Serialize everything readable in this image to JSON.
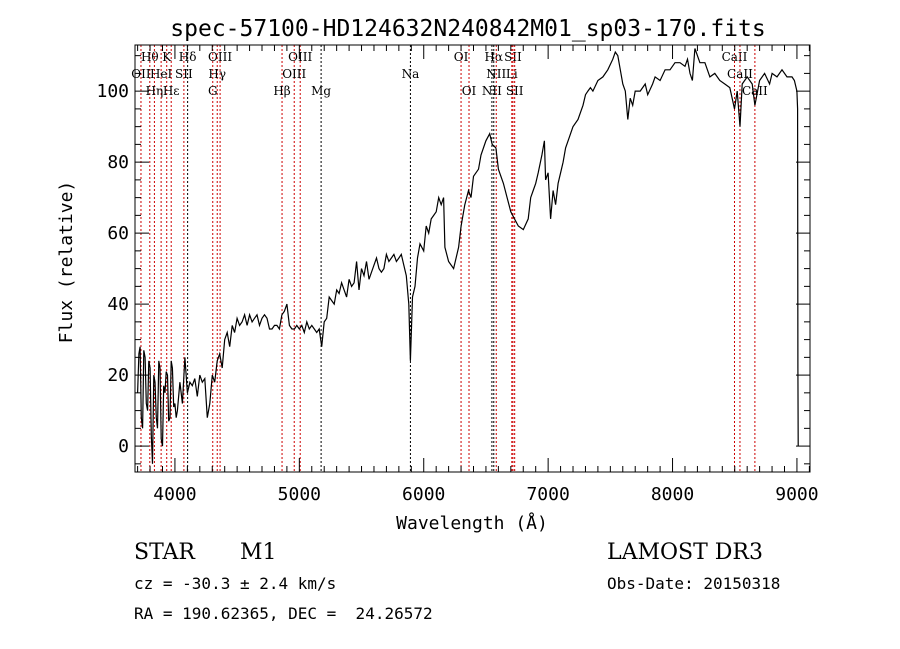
{
  "chart_data": {
    "type": "line",
    "title": "spec-57100-HD124632N240842M01_sp03-170.fits",
    "xlabel": "Wavelength (Å)",
    "ylabel": "Flux (relative)",
    "xlim": [
      3679,
      9105
    ],
    "ylim": [
      -7.3,
      113
    ],
    "xticks": [
      4000,
      5000,
      6000,
      7000,
      8000,
      9000
    ],
    "yticks": [
      0,
      20,
      40,
      60,
      80,
      100
    ],
    "grid": false,
    "colors": {
      "spectrum": "#000000",
      "line_red": "#cc0000",
      "line_black": "#000000"
    },
    "series": [
      {
        "name": "spectrum",
        "points": [
          [
            3700,
            15
          ],
          [
            3710,
            26
          ],
          [
            3720,
            28
          ],
          [
            3730,
            8
          ],
          [
            3740,
            5
          ],
          [
            3750,
            27
          ],
          [
            3760,
            25
          ],
          [
            3770,
            12
          ],
          [
            3780,
            10
          ],
          [
            3790,
            24
          ],
          [
            3800,
            22
          ],
          [
            3810,
            3
          ],
          [
            3820,
            -5
          ],
          [
            3830,
            20
          ],
          [
            3840,
            18
          ],
          [
            3850,
            8
          ],
          [
            3860,
            5
          ],
          [
            3870,
            24
          ],
          [
            3880,
            22
          ],
          [
            3890,
            2
          ],
          [
            3900,
            0
          ],
          [
            3910,
            17
          ],
          [
            3920,
            15
          ],
          [
            3930,
            21
          ],
          [
            3940,
            20
          ],
          [
            3950,
            7
          ],
          [
            3960,
            8
          ],
          [
            3970,
            24
          ],
          [
            3980,
            22
          ],
          [
            3990,
            11
          ],
          [
            4000,
            12
          ],
          [
            4010,
            8
          ],
          [
            4020,
            10
          ],
          [
            4040,
            18
          ],
          [
            4060,
            12
          ],
          [
            4080,
            25
          ],
          [
            4100,
            15
          ],
          [
            4120,
            18
          ],
          [
            4140,
            17
          ],
          [
            4160,
            19
          ],
          [
            4180,
            14
          ],
          [
            4200,
            20
          ],
          [
            4220,
            18
          ],
          [
            4240,
            19
          ],
          [
            4260,
            8
          ],
          [
            4280,
            12
          ],
          [
            4300,
            20
          ],
          [
            4320,
            18
          ],
          [
            4340,
            24
          ],
          [
            4360,
            26
          ],
          [
            4380,
            22
          ],
          [
            4400,
            30
          ],
          [
            4420,
            32
          ],
          [
            4440,
            28
          ],
          [
            4460,
            34
          ],
          [
            4480,
            32
          ],
          [
            4500,
            36
          ],
          [
            4520,
            34
          ],
          [
            4540,
            35
          ],
          [
            4560,
            37
          ],
          [
            4580,
            34
          ],
          [
            4600,
            37
          ],
          [
            4620,
            35
          ],
          [
            4640,
            36
          ],
          [
            4660,
            37
          ],
          [
            4680,
            34
          ],
          [
            4700,
            36
          ],
          [
            4720,
            37
          ],
          [
            4740,
            36
          ],
          [
            4760,
            33
          ],
          [
            4780,
            33
          ],
          [
            4800,
            34
          ],
          [
            4820,
            34
          ],
          [
            4840,
            33
          ],
          [
            4860,
            37
          ],
          [
            4880,
            38
          ],
          [
            4900,
            40
          ],
          [
            4920,
            34
          ],
          [
            4940,
            33
          ],
          [
            4960,
            33
          ],
          [
            4980,
            34
          ],
          [
            5000,
            33
          ],
          [
            5020,
            34
          ],
          [
            5040,
            32
          ],
          [
            5060,
            35
          ],
          [
            5080,
            33
          ],
          [
            5100,
            34
          ],
          [
            5120,
            33
          ],
          [
            5140,
            32
          ],
          [
            5160,
            33
          ],
          [
            5180,
            28
          ],
          [
            5200,
            35
          ],
          [
            5220,
            36
          ],
          [
            5240,
            42
          ],
          [
            5260,
            41
          ],
          [
            5280,
            40
          ],
          [
            5300,
            44
          ],
          [
            5320,
            43
          ],
          [
            5340,
            46
          ],
          [
            5360,
            44
          ],
          [
            5380,
            42
          ],
          [
            5400,
            47
          ],
          [
            5420,
            45
          ],
          [
            5440,
            46
          ],
          [
            5460,
            52
          ],
          [
            5480,
            44
          ],
          [
            5500,
            50
          ],
          [
            5520,
            48
          ],
          [
            5540,
            52
          ],
          [
            5560,
            47
          ],
          [
            5580,
            49
          ],
          [
            5600,
            51
          ],
          [
            5620,
            53
          ],
          [
            5640,
            50
          ],
          [
            5660,
            49
          ],
          [
            5680,
            50
          ],
          [
            5700,
            54
          ],
          [
            5720,
            52
          ],
          [
            5740,
            53
          ],
          [
            5760,
            54
          ],
          [
            5780,
            52
          ],
          [
            5800,
            53
          ],
          [
            5820,
            54
          ],
          [
            5840,
            51
          ],
          [
            5860,
            48
          ],
          [
            5880,
            40
          ],
          [
            5893,
            24
          ],
          [
            5910,
            42
          ],
          [
            5930,
            45
          ],
          [
            5950,
            53
          ],
          [
            5970,
            57
          ],
          [
            6000,
            55
          ],
          [
            6020,
            62
          ],
          [
            6040,
            60
          ],
          [
            6060,
            64
          ],
          [
            6080,
            65
          ],
          [
            6100,
            66
          ],
          [
            6120,
            70
          ],
          [
            6140,
            68
          ],
          [
            6160,
            70
          ],
          [
            6170,
            56
          ],
          [
            6200,
            52
          ],
          [
            6240,
            50
          ],
          [
            6280,
            56
          ],
          [
            6300,
            62
          ],
          [
            6330,
            68
          ],
          [
            6360,
            72
          ],
          [
            6380,
            70
          ],
          [
            6400,
            76
          ],
          [
            6440,
            78
          ],
          [
            6460,
            82
          ],
          [
            6500,
            86
          ],
          [
            6530,
            88
          ],
          [
            6550,
            85
          ],
          [
            6580,
            84
          ],
          [
            6600,
            78
          ],
          [
            6640,
            74
          ],
          [
            6670,
            70
          ],
          [
            6700,
            66
          ],
          [
            6730,
            64
          ],
          [
            6760,
            62
          ],
          [
            6800,
            61
          ],
          [
            6840,
            64
          ],
          [
            6860,
            70
          ],
          [
            6880,
            72
          ],
          [
            6900,
            74
          ],
          [
            6920,
            77
          ],
          [
            6950,
            82
          ],
          [
            6970,
            86
          ],
          [
            6980,
            75
          ],
          [
            7000,
            77
          ],
          [
            7020,
            64
          ],
          [
            7040,
            72
          ],
          [
            7060,
            68
          ],
          [
            7080,
            74
          ],
          [
            7100,
            77
          ],
          [
            7120,
            80
          ],
          [
            7140,
            84
          ],
          [
            7170,
            87
          ],
          [
            7200,
            90
          ],
          [
            7240,
            92
          ],
          [
            7280,
            96
          ],
          [
            7300,
            99
          ],
          [
            7320,
            100
          ],
          [
            7340,
            101
          ],
          [
            7360,
            100
          ],
          [
            7400,
            103
          ],
          [
            7440,
            104
          ],
          [
            7480,
            106
          ],
          [
            7520,
            109
          ],
          [
            7540,
            111
          ],
          [
            7560,
            110
          ],
          [
            7580,
            106
          ],
          [
            7600,
            102
          ],
          [
            7620,
            100
          ],
          [
            7640,
            92
          ],
          [
            7660,
            98
          ],
          [
            7680,
            96
          ],
          [
            7700,
            100
          ],
          [
            7740,
            100
          ],
          [
            7780,
            102
          ],
          [
            7800,
            99
          ],
          [
            7840,
            102
          ],
          [
            7860,
            104
          ],
          [
            7900,
            103
          ],
          [
            7940,
            106
          ],
          [
            7980,
            106
          ],
          [
            8020,
            108
          ],
          [
            8060,
            108
          ],
          [
            8100,
            107
          ],
          [
            8120,
            109
          ],
          [
            8140,
            105
          ],
          [
            8160,
            103
          ],
          [
            8180,
            112
          ],
          [
            8200,
            110
          ],
          [
            8220,
            108
          ],
          [
            8260,
            108
          ],
          [
            8300,
            104
          ],
          [
            8340,
            105
          ],
          [
            8380,
            103
          ],
          [
            8420,
            102
          ],
          [
            8460,
            101
          ],
          [
            8498,
            95
          ],
          [
            8520,
            100
          ],
          [
            8542,
            90
          ],
          [
            8560,
            102
          ],
          [
            8600,
            104
          ],
          [
            8640,
            102
          ],
          [
            8662,
            96
          ],
          [
            8700,
            103
          ],
          [
            8740,
            105
          ],
          [
            8780,
            102
          ],
          [
            8800,
            105
          ],
          [
            8840,
            104
          ],
          [
            8880,
            106
          ],
          [
            8920,
            104
          ],
          [
            8960,
            104
          ],
          [
            8980,
            103
          ],
          [
            9000,
            100
          ],
          [
            9005,
            95
          ],
          [
            9008,
            22
          ],
          [
            9010,
            0
          ]
        ]
      }
    ],
    "lines": [
      {
        "label": "Hθ",
        "wave": 3798,
        "row": 0,
        "color": "red"
      },
      {
        "label": "K",
        "wave": 3934,
        "row": 0,
        "color": "red"
      },
      {
        "label": "Hδ",
        "wave": 4102,
        "row": 0,
        "color": "black"
      },
      {
        "label": "OIII",
        "wave": 4363,
        "row": 0,
        "color": "red"
      },
      {
        "label": "OIII",
        "wave": 5007,
        "row": 0,
        "color": "red"
      },
      {
        "label": "OI",
        "wave": 6300,
        "row": 0,
        "color": "red"
      },
      {
        "label": "Hα",
        "wave": 6563,
        "row": 0,
        "color": "black"
      },
      {
        "label": "SII",
        "wave": 6717,
        "row": 0,
        "color": "red"
      },
      {
        "label": "CaII",
        "wave": 8498,
        "row": 0,
        "color": "red"
      },
      {
        "label": "OII",
        "wave": 3727,
        "row": 1,
        "color": "red"
      },
      {
        "label": "HeI",
        "wave": 3889,
        "row": 1,
        "color": "red"
      },
      {
        "label": "SII",
        "wave": 4072,
        "row": 1,
        "color": "red"
      },
      {
        "label": "Hγ",
        "wave": 4340,
        "row": 1,
        "color": "red"
      },
      {
        "label": "OIII",
        "wave": 4959,
        "row": 1,
        "color": "red"
      },
      {
        "label": "Na",
        "wave": 5893,
        "row": 1,
        "color": "black"
      },
      {
        "label": "NII",
        "wave": 6583,
        "row": 1,
        "color": "red"
      },
      {
        "label": "Li",
        "wave": 6708,
        "row": 1,
        "color": "red"
      },
      {
        "label": "CaII",
        "wave": 8542,
        "row": 1,
        "color": "red"
      },
      {
        "label": "Hε",
        "wave": 3970,
        "row": 2,
        "color": "red"
      },
      {
        "label": "Hη",
        "wave": 3835,
        "row": 2,
        "color": "red"
      },
      {
        "label": "G",
        "wave": 4304,
        "row": 2,
        "color": "red"
      },
      {
        "label": "Hβ",
        "wave": 4861,
        "row": 2,
        "color": "red"
      },
      {
        "label": "Mg",
        "wave": 5175,
        "row": 2,
        "color": "black"
      },
      {
        "label": "OI",
        "wave": 6364,
        "row": 2,
        "color": "red"
      },
      {
        "label": "NII",
        "wave": 6548,
        "row": 2,
        "color": "black"
      },
      {
        "label": "SII",
        "wave": 6731,
        "row": 2,
        "color": "red"
      },
      {
        "label": "CaII",
        "wave": 8662,
        "row": 2,
        "color": "red"
      }
    ]
  },
  "info": {
    "object_class": "STAR",
    "subclass": "M1",
    "survey": "LAMOST DR3",
    "cz": "cz = -30.3 ± 2.4 km/s",
    "obs_date": "Obs-Date: 20150318",
    "coords": "RA = 190.62365, DEC =  24.26572"
  }
}
